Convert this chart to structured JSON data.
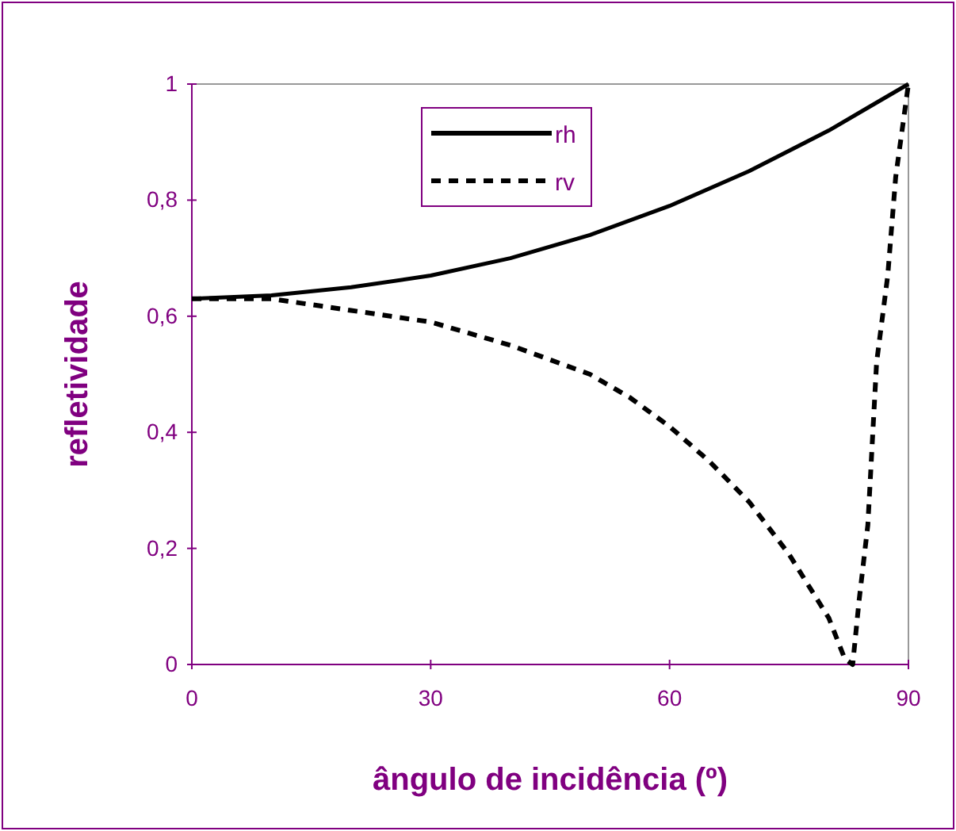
{
  "chart_data": {
    "type": "line",
    "xlabel": "ângulo de incidência (º)",
    "ylabel": "refletividade",
    "xlim": [
      0,
      90
    ],
    "xticks": [
      0,
      30,
      60,
      90
    ],
    "ylim": [
      0,
      1
    ],
    "yticks": [
      0,
      {
        "value": 0.2,
        "label": "0,2"
      },
      {
        "value": 0.4,
        "label": "0,4"
      },
      {
        "value": 0.6,
        "label": "0,6"
      },
      {
        "value": 0.8,
        "label": "0,8"
      },
      1
    ],
    "legend": "top",
    "grid": false,
    "series": [
      {
        "name": "rh",
        "color": "#000000",
        "line_style": "solid",
        "x": [
          0,
          10,
          20,
          30,
          40,
          50,
          60,
          70,
          80,
          85,
          90
        ],
        "values": [
          0.63,
          0.636,
          0.65,
          0.67,
          0.7,
          0.74,
          0.79,
          0.85,
          0.92,
          0.96,
          1
        ]
      },
      {
        "name": "rv",
        "color": "#000000",
        "line_style": "dashed",
        "x": [
          0,
          10,
          20,
          30,
          40,
          50,
          55,
          60,
          65,
          70,
          75,
          80,
          82,
          83,
          83.8,
          84.9,
          86,
          87.4,
          88.4,
          90
        ],
        "values": [
          0.63,
          0.63,
          0.61,
          0.59,
          0.55,
          0.5,
          0.46,
          0.41,
          0.35,
          0.28,
          0.19,
          0.08,
          0.01,
          0,
          0.11,
          0.24,
          0.52,
          0.67,
          0.84,
          1
        ]
      }
    ]
  }
}
